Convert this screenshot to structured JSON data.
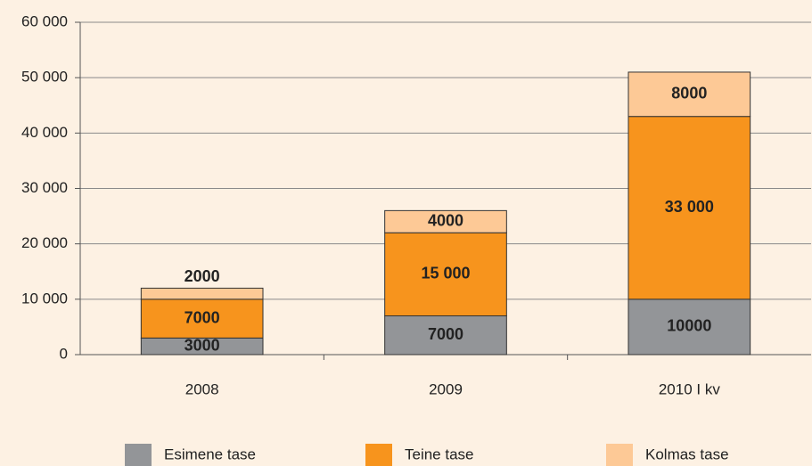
{
  "chart_data": {
    "type": "stacked_bar",
    "categories": [
      "2008",
      "2009",
      "2010 I kv"
    ],
    "series": [
      {
        "name": "Esimene tase",
        "color": "#939598",
        "values": [
          3000,
          7000,
          10000
        ],
        "value_labels": [
          "3000",
          "7000",
          "10000"
        ]
      },
      {
        "name": "Teine tase",
        "color": "#f7941d",
        "values": [
          7000,
          15000,
          33000
        ],
        "value_labels": [
          "7000",
          "15 000",
          "33 000"
        ]
      },
      {
        "name": "Kolmas tase",
        "color": "#fdc996",
        "values": [
          2000,
          4000,
          8000
        ],
        "value_labels": [
          "2000",
          "4000",
          "8000"
        ]
      }
    ],
    "ylim": [
      0,
      60000
    ],
    "yticks": [
      0,
      {
        "value": 10000,
        "label": "10 000"
      },
      {
        "value": 20000,
        "label": "20 000"
      },
      {
        "value": 30000,
        "label": "30 000"
      },
      {
        "value": 40000,
        "label": "40 000"
      },
      {
        "value": 50000,
        "label": "50 000"
      },
      {
        "value": 60000,
        "label": "60 000"
      }
    ],
    "grid": true,
    "legend": "bottom"
  }
}
